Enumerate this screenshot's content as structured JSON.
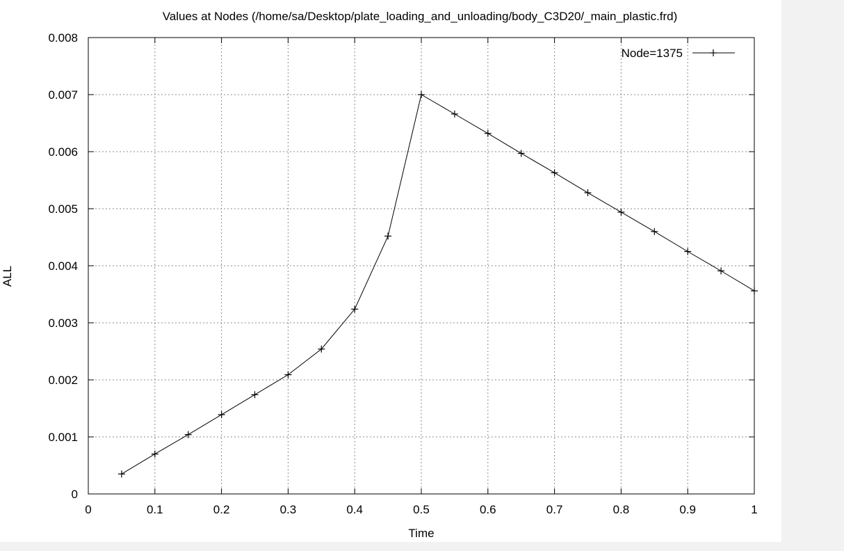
{
  "chart_data": {
    "type": "line",
    "title": "Values at Nodes (/home/sa/Desktop/plate_loading_and_unloading/body_C3D20/_main_plastic.frd)",
    "xlabel": "Time",
    "ylabel": "ALL",
    "xlim": [
      0,
      1
    ],
    "ylim": [
      0,
      0.008
    ],
    "x_ticks": [
      "0",
      "0.1",
      "0.2",
      "0.3",
      "0.4",
      "0.5",
      "0.6",
      "0.7",
      "0.8",
      "0.9",
      "1"
    ],
    "y_ticks": [
      "0",
      "0.001",
      "0.002",
      "0.003",
      "0.004",
      "0.005",
      "0.006",
      "0.007",
      "0.008"
    ],
    "grid": true,
    "legend_position": "top-right",
    "series": [
      {
        "name": "Node=1375",
        "x": [
          0.05,
          0.1,
          0.15,
          0.2,
          0.25,
          0.3,
          0.35,
          0.4,
          0.45,
          0.5,
          0.55,
          0.6,
          0.65,
          0.7,
          0.75,
          0.8,
          0.85,
          0.9,
          0.95,
          1.0
        ],
        "y": [
          0.00035,
          0.0007,
          0.00104,
          0.00139,
          0.00174,
          0.00209,
          0.00254,
          0.00324,
          0.00452,
          0.007,
          0.00666,
          0.00632,
          0.00597,
          0.00563,
          0.00528,
          0.00494,
          0.0046,
          0.00425,
          0.00391,
          0.00356
        ],
        "color": "#000000"
      }
    ]
  }
}
